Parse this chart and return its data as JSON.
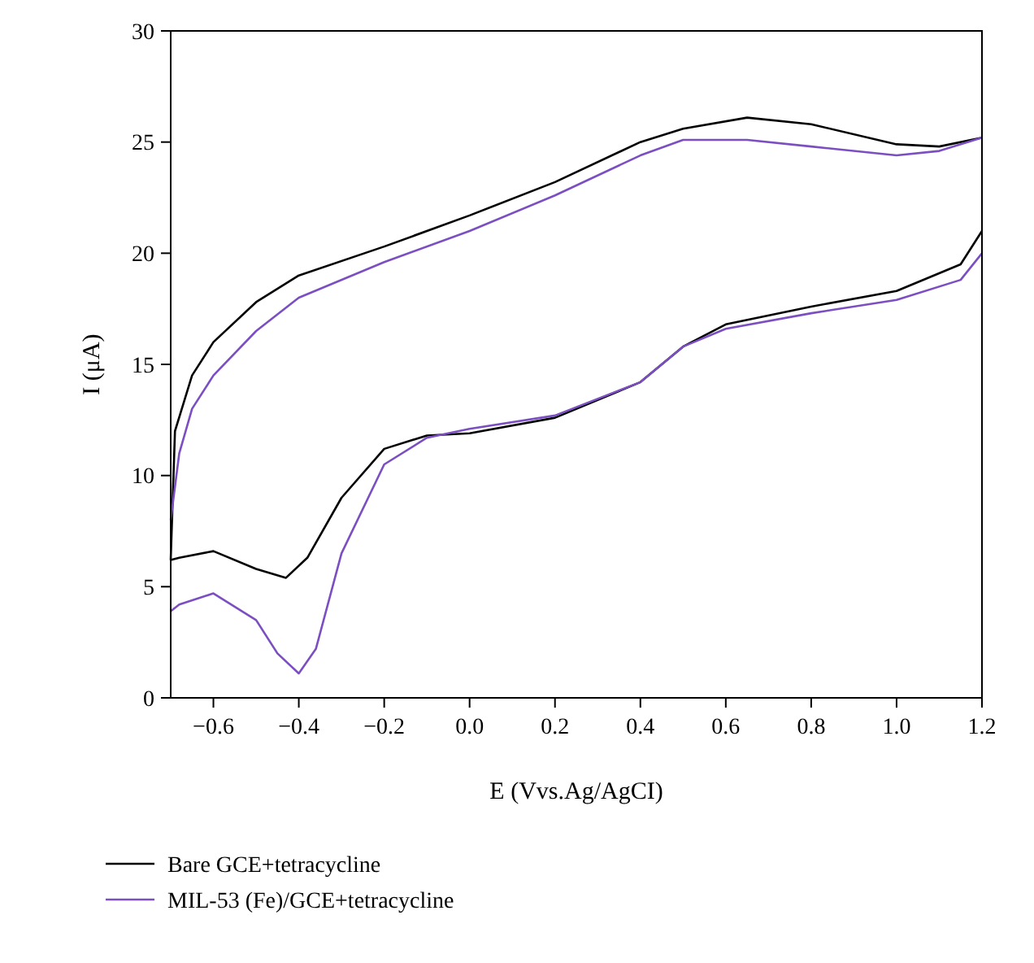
{
  "chart_data": {
    "type": "line",
    "xlabel": "E (Vvs.Ag/AgCI)",
    "ylabel": "I (μA)",
    "xlim": [
      -0.7,
      1.2
    ],
    "ylim": [
      0,
      30
    ],
    "xticks": [
      {
        "value": -0.6,
        "label": "−0.6"
      },
      {
        "value": -0.4,
        "label": "−0.4"
      },
      {
        "value": -0.2,
        "label": "−0.2"
      },
      {
        "value": 0,
        "label": "0.0"
      },
      0.2,
      0.4,
      0.6,
      0.8,
      {
        "value": 1,
        "label": "1.0"
      },
      1.2
    ],
    "yticks": [
      0,
      5,
      10,
      15,
      20,
      25,
      30
    ],
    "legend": "bottom",
    "grid": false,
    "series": [
      {
        "name": "Bare GCE+tetracycline",
        "color": "#000000",
        "x": [
          -0.7,
          -0.69,
          -0.65,
          -0.6,
          -0.5,
          -0.4,
          -0.2,
          0,
          0.2,
          0.4,
          0.5,
          0.65,
          0.8,
          1.0,
          1.1,
          1.2
        ],
        "values": [
          6.2,
          12,
          14.5,
          16,
          17.8,
          19,
          20.3,
          21.7,
          23.2,
          25,
          25.6,
          26.1,
          25.8,
          24.9,
          24.8,
          25.2
        ]
      },
      {
        "color": "#000000",
        "x": [
          -0.7,
          -0.68,
          -0.6,
          -0.5,
          -0.43,
          -0.38,
          -0.3,
          -0.2,
          -0.1,
          0,
          0.2,
          0.4,
          0.5,
          0.6,
          0.8,
          1.0,
          1.15,
          1.2
        ],
        "values": [
          6.2,
          6.3,
          6.6,
          5.8,
          5.4,
          6.3,
          9,
          11.2,
          11.8,
          11.9,
          12.6,
          14.2,
          15.8,
          16.8,
          17.6,
          18.3,
          19.5,
          21
        ]
      },
      {
        "name": "MIL-53 (Fe)/GCE+tetracycline",
        "color": "#7b4fc2",
        "x": [
          -0.7,
          -0.68,
          -0.65,
          -0.6,
          -0.5,
          -0.4,
          -0.2,
          0,
          0.2,
          0.4,
          0.5,
          0.65,
          0.8,
          1.0,
          1.1,
          1.2
        ],
        "values": [
          8,
          11,
          13,
          14.5,
          16.5,
          18,
          19.6,
          21,
          22.6,
          24.4,
          25.1,
          25.1,
          24.8,
          24.4,
          24.6,
          25.2
        ]
      },
      {
        "color": "#7b4fc2",
        "x": [
          -0.7,
          -0.68,
          -0.6,
          -0.5,
          -0.45,
          -0.4,
          -0.36,
          -0.3,
          -0.2,
          -0.1,
          0,
          0.2,
          0.4,
          0.5,
          0.6,
          0.8,
          1.0,
          1.15,
          1.2
        ],
        "values": [
          3.9,
          4.2,
          4.7,
          3.5,
          2,
          1.1,
          2.2,
          6.5,
          10.5,
          11.7,
          12.1,
          12.7,
          14.2,
          15.8,
          16.6,
          17.3,
          17.9,
          18.8,
          20
        ]
      }
    ]
  }
}
